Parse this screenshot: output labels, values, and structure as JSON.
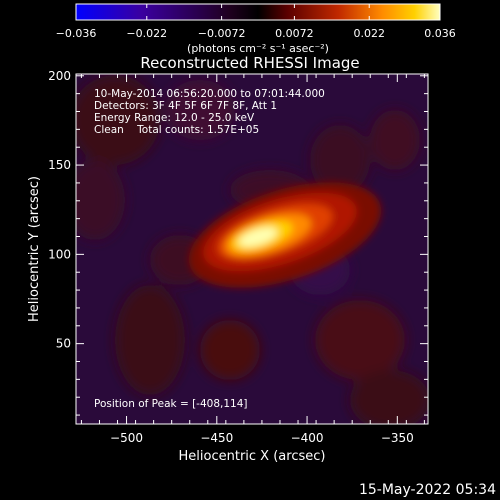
{
  "colorbar": {
    "ticks": [
      "-0.036",
      "-0.022",
      "-0.0072",
      "0.0072",
      "0.022",
      "0.036"
    ],
    "tick_values": [
      -0.036,
      -0.022,
      -0.0072,
      0.0072,
      0.022,
      0.036
    ],
    "units": "(photons cm⁻² s⁻¹ asec⁻²)",
    "colors": [
      "#0000ff",
      "#400080",
      "#000000",
      "#5a0000",
      "#b32000",
      "#ff7a00",
      "#ffd000",
      "#ffffb0"
    ]
  },
  "chart_data": {
    "type": "heatmap",
    "title": "Reconstructed RHESSI Image",
    "xlabel": "Heliocentric X (arcsec)",
    "ylabel": "Heliocentric Y (arcsec)",
    "xlim": [
      -528,
      -333
    ],
    "ylim": [
      5,
      201
    ],
    "x_ticks": [
      -500,
      -450,
      -400,
      -350
    ],
    "y_ticks": [
      50,
      100,
      150,
      200
    ],
    "x_tick_labels": [
      "−500",
      "−450",
      "−400",
      "−350"
    ],
    "y_tick_labels": [
      "50",
      "100",
      "150",
      "200"
    ],
    "peak": {
      "x": -408,
      "y": 114
    },
    "annotations": {
      "time": "10-May-2014 06:56:20.000 to 07:01:44.000",
      "detectors": "Detectors: 3F 4F 5F 6F 7F 8F, Att 1",
      "energy": "Energy Range: 12.0 - 25.0 keV",
      "clean": "Clean    Total counts: 1.57E+05",
      "peak_text": "Position of Peak = [-408,114]"
    },
    "colormap_range": [
      -0.036,
      0.036
    ]
  },
  "footer": {
    "date": "15-May-2022 05:34"
  }
}
